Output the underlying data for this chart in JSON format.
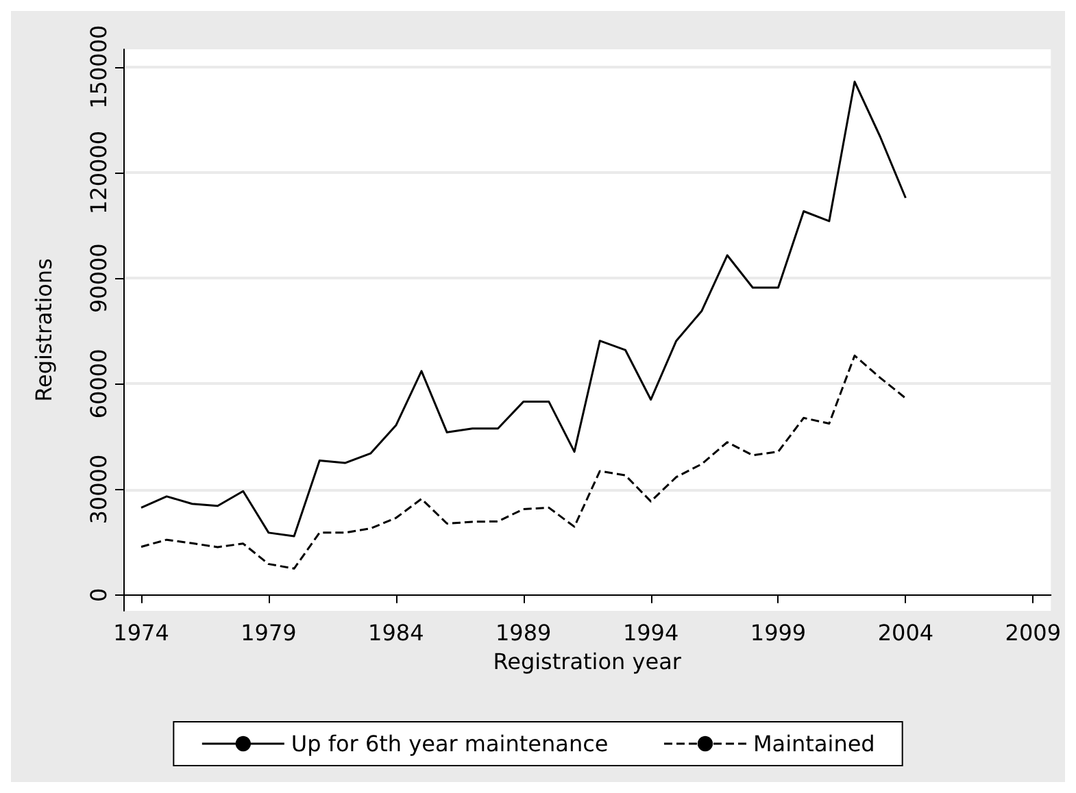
{
  "chart_data": {
    "type": "line",
    "xlabel": "Registration year",
    "ylabel": "Registrations",
    "x": [
      1974,
      1975,
      1976,
      1977,
      1978,
      1979,
      1980,
      1981,
      1982,
      1983,
      1984,
      1985,
      1986,
      1987,
      1988,
      1989,
      1990,
      1991,
      1992,
      1993,
      1994,
      1995,
      1996,
      1997,
      1998,
      1999,
      2000,
      2001,
      2002,
      2003,
      2004
    ],
    "series": [
      {
        "name": "Up for 6th year maintenance",
        "color": "#000000",
        "line_style": "solid",
        "values": [
          24800,
          28000,
          25900,
          25300,
          29500,
          17700,
          16700,
          38200,
          37500,
          40200,
          48200,
          63600,
          46200,
          47300,
          47300,
          54900,
          54900,
          40700,
          72200,
          69600,
          55500,
          72200,
          80700,
          96500,
          87300,
          87300,
          109000,
          106200,
          145800,
          130200,
          112800
        ]
      },
      {
        "name": "Maintained",
        "color": "#000000",
        "line_style": "dashed",
        "values": [
          13700,
          15700,
          14700,
          13600,
          14600,
          8800,
          7500,
          17700,
          17700,
          18900,
          21900,
          27300,
          20300,
          20800,
          20900,
          24400,
          24800,
          19400,
          35200,
          34000,
          26600,
          33500,
          37200,
          43400,
          39700,
          40700,
          50300,
          48700,
          68000,
          61700,
          55900
        ]
      }
    ],
    "xlim": [
      1973.3,
      2009.7
    ],
    "xticks": [
      1974,
      1979,
      1984,
      1989,
      1994,
      1999,
      2004,
      2009
    ],
    "ylim": [
      -4500,
      155000
    ],
    "yticks": [
      0,
      30000,
      60000,
      90000,
      120000,
      150000
    ],
    "grid": "y",
    "legend": "bottom",
    "marker": "none"
  }
}
